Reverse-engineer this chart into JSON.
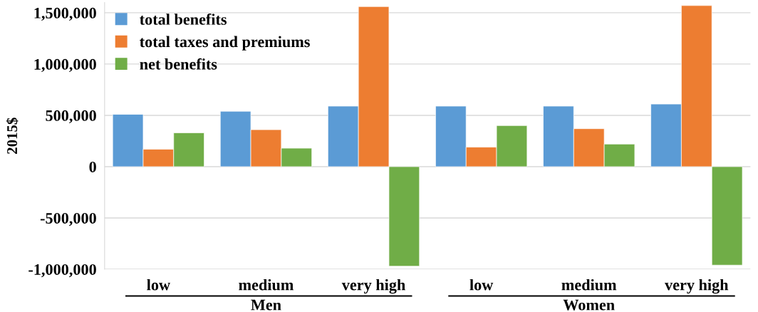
{
  "chart_data": {
    "type": "bar",
    "ylabel": "2015$",
    "categories": [
      "low",
      "medium",
      "very high",
      "low",
      "medium",
      "very high"
    ],
    "series": [
      {
        "name": "total benefits",
        "color": "#5b9bd5",
        "values": [
          510000,
          540000,
          590000,
          590000,
          590000,
          610000
        ]
      },
      {
        "name": "total taxes and premiums",
        "color": "#ed7d31",
        "values": [
          170000,
          360000,
          1560000,
          190000,
          370000,
          1570000
        ]
      },
      {
        "name": "net benefits",
        "color": "#70ad47",
        "values": [
          330000,
          180000,
          -970000,
          400000,
          220000,
          -960000
        ]
      }
    ],
    "ylim": [
      -1000000,
      1600000
    ],
    "yticks": [
      {
        "value": -1000000,
        "label": "-1,000,000"
      },
      {
        "value": -500000,
        "label": "-500,000"
      },
      0,
      {
        "value": 500000,
        "label": "500,000"
      },
      {
        "value": 1000000,
        "label": "1,000,000"
      },
      {
        "value": 1500000,
        "label": "1,500,000"
      }
    ],
    "grid": "y",
    "legend": "top left",
    "annotations": [
      "Men",
      "Women"
    ]
  }
}
